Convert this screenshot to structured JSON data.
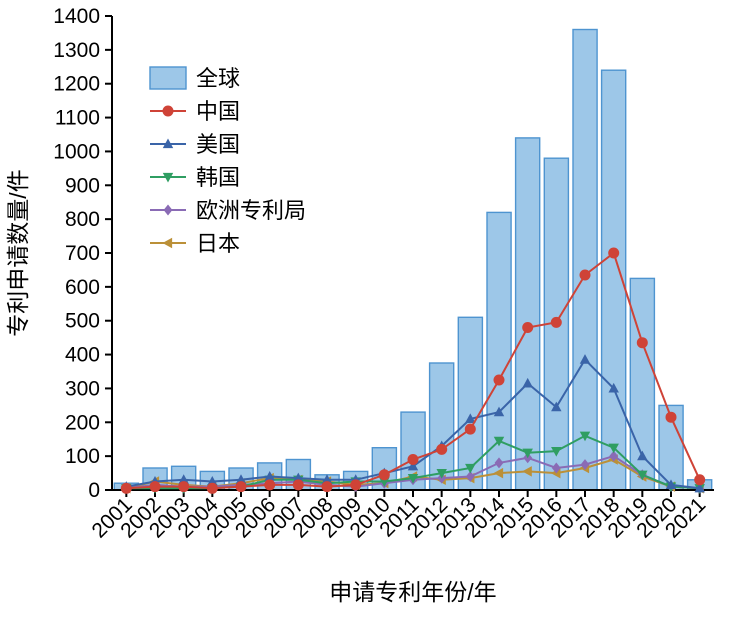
{
  "chart_data": {
    "type": "bar+line",
    "title": "",
    "xlabel": "申请专利年份/年",
    "ylabel": "专利申请数量/件",
    "ylim": [
      0,
      1400
    ],
    "ytick_step": 100,
    "grid": false,
    "legend_position": "upper-left",
    "categories": [
      "2001",
      "2002",
      "2003",
      "2004",
      "2005",
      "2006",
      "2007",
      "2008",
      "2009",
      "2010",
      "2011",
      "2012",
      "2013",
      "2014",
      "2015",
      "2016",
      "2017",
      "2018",
      "2019",
      "2020",
      "2021"
    ],
    "bar_series": {
      "id": "global",
      "name": "全球",
      "fill": "#9dc7e8",
      "stroke": "#4e94d0",
      "values": [
        20,
        65,
        70,
        55,
        65,
        80,
        90,
        45,
        55,
        125,
        230,
        375,
        510,
        820,
        1040,
        980,
        1360,
        1240,
        625,
        250,
        30
      ]
    },
    "line_series": [
      {
        "id": "china",
        "name": "中国",
        "color": "#cf4337",
        "marker": "circle",
        "values": [
          5,
          10,
          10,
          5,
          10,
          15,
          15,
          10,
          15,
          45,
          90,
          120,
          180,
          325,
          480,
          495,
          635,
          700,
          435,
          215,
          30
        ]
      },
      {
        "id": "usa",
        "name": "美国",
        "color": "#3a64a8",
        "marker": "triangle-up",
        "values": [
          10,
          25,
          30,
          25,
          30,
          40,
          35,
          30,
          30,
          50,
          70,
          130,
          210,
          230,
          315,
          245,
          385,
          300,
          100,
          15,
          5
        ]
      },
      {
        "id": "korea",
        "name": "韩国",
        "color": "#2f9e62",
        "marker": "triangle-down",
        "values": [
          5,
          5,
          5,
          5,
          10,
          30,
          30,
          20,
          25,
          25,
          35,
          50,
          65,
          145,
          110,
          115,
          160,
          125,
          45,
          10,
          5
        ]
      },
      {
        "id": "epo",
        "name": "欧洲专利局",
        "color": "#8a6bb5",
        "marker": "diamond",
        "values": [
          5,
          15,
          10,
          10,
          15,
          20,
          25,
          15,
          10,
          20,
          30,
          35,
          40,
          80,
          95,
          65,
          75,
          100,
          45,
          10,
          5
        ]
      },
      {
        "id": "japan",
        "name": "日本",
        "color": "#bb9038",
        "marker": "triangle-left",
        "values": [
          5,
          25,
          15,
          10,
          20,
          35,
          30,
          25,
          15,
          20,
          40,
          30,
          35,
          50,
          55,
          50,
          65,
          90,
          40,
          10,
          5
        ]
      }
    ]
  }
}
